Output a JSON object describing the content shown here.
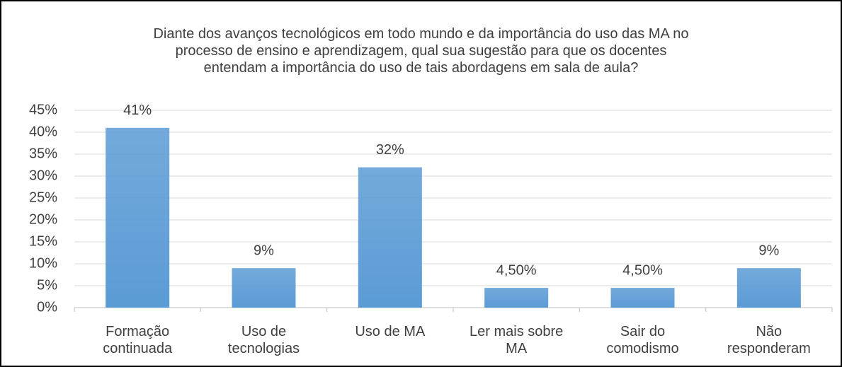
{
  "chart_data": {
    "type": "bar",
    "title": "Diante dos avanços tecnológicos em todo mundo e da importância do uso das MA no processo de ensino e aprendizagem, qual sua sugestão para que os docentes entendam a importância do uso de tais abordagens em sala de aula?",
    "categories": [
      "Formação continuada",
      "Uso de tecnologias",
      "Uso de MA",
      "Ler mais sobre MA",
      "Sair do comodismo",
      "Não responderam"
    ],
    "values": [
      41,
      9,
      32,
      4.5,
      4.5,
      9
    ],
    "value_labels": [
      "41%",
      "9%",
      "32%",
      "4,50%",
      "4,50%",
      "9%"
    ],
    "color": "#5b9bd5",
    "ylim": [
      0,
      45
    ],
    "yticks": [
      {
        "value": 0,
        "label": "0%"
      },
      {
        "value": 5,
        "label": "5%"
      },
      {
        "value": 10,
        "label": "10%"
      },
      {
        "value": 15,
        "label": "15%"
      },
      {
        "value": 20,
        "label": "20%"
      },
      {
        "value": 25,
        "label": "25%"
      },
      {
        "value": 30,
        "label": "30%"
      },
      {
        "value": 35,
        "label": "35%"
      },
      {
        "value": 40,
        "label": "40%"
      },
      {
        "value": 45,
        "label": "45%"
      }
    ],
    "grid": true
  }
}
